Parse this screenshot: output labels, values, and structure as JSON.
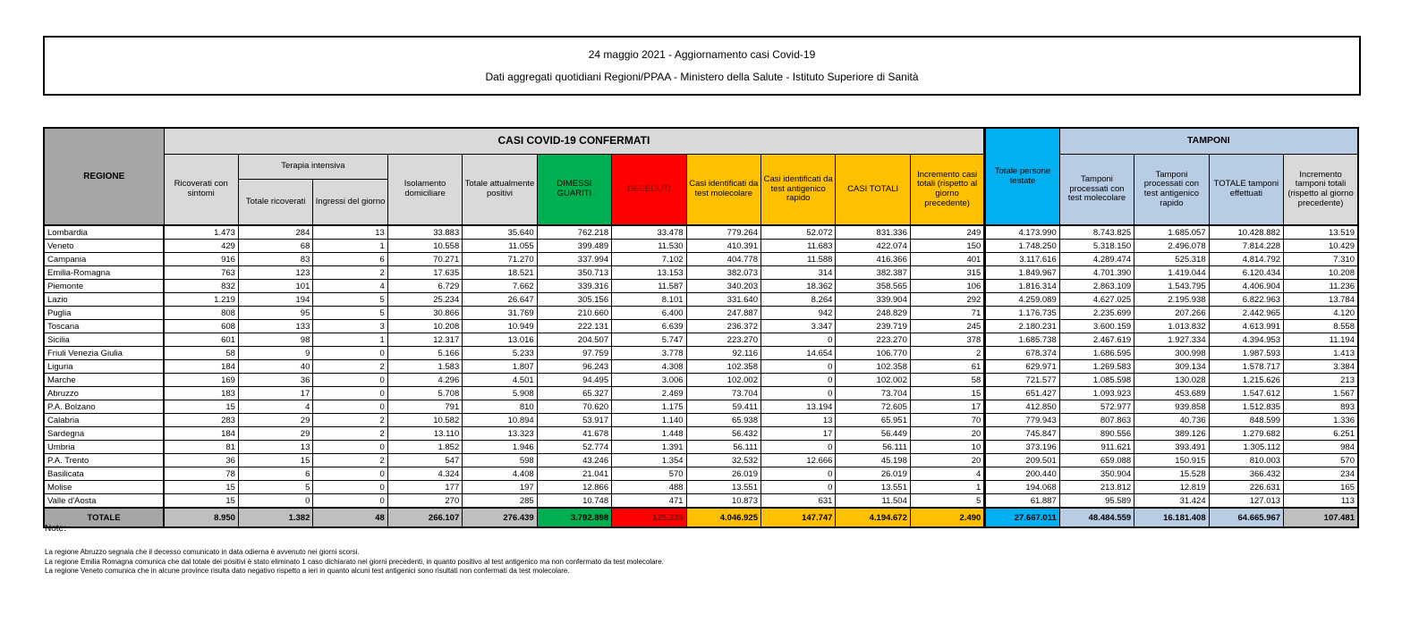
{
  "title": {
    "line1": "24 maggio 2021 - Aggiornamento casi Covid-19",
    "line2": "Dati aggregati quotidiani Regioni/PPAA - Ministero della Salute - Istituto Superiore di Sanità"
  },
  "colors": {
    "green": "#00B050",
    "red": "#FF0000",
    "red_text": "#7B0D00",
    "amber": "#FFC000",
    "cyan": "#00B0F0",
    "periwinkle": "#B8CCE4",
    "dark_gray": "#A6A6A6",
    "light_gray": "#D9D9D9",
    "total_gray": "#BFBFBF"
  },
  "table": {
    "group_headers": {
      "casi": "CASI COVID-19 CONFERMATI",
      "tamponi": "TAMPONI",
      "terapia": "Terapia intensiva"
    },
    "columns": {
      "regione": "REGIONE",
      "ricoverati": "Ricoverati con sintomi",
      "terapia_totale": "Totale ricoverati",
      "terapia_ingressi": "Ingressi del giorno",
      "isolamento": "Isolamento domiciliare",
      "attualmente_positivi": "Totale attualmente positivi",
      "dimessi": "DIMESSI GUARITI",
      "deceduti": "DECEDUTI",
      "casi_molecolare": "Casi identificati da test molecolare",
      "casi_antigenico": "Casi identificati da test antigenico rapido",
      "casi_totali": "CASI TOTALI",
      "incremento_casi": "Incremento casi totali (rispetto al giorno precedente)",
      "persone_testate": "Totale persone testate",
      "tamponi_molecolare": "Tamponi processati con test molecolare",
      "tamponi_antigenico": "Tamponi processati con test antigenico rapido",
      "totale_tamponi": "TOTALE tamponi effettuati",
      "incremento_tamponi": "Incremento tamponi totali (rispetto al giorno precedente)"
    },
    "rows": [
      {
        "regione": "Lombardia",
        "values": [
          "1.473",
          "284",
          "13",
          "33.883",
          "35.640",
          "762.218",
          "33.478",
          "779.264",
          "52.072",
          "831.336",
          "249",
          "4.173.990",
          "8.743.825",
          "1.685.057",
          "10.428.882",
          "13.519"
        ]
      },
      {
        "regione": "Veneto",
        "values": [
          "429",
          "68",
          "1",
          "10.558",
          "11.055",
          "399.489",
          "11.530",
          "410.391",
          "11.683",
          "422.074",
          "150",
          "1.748.250",
          "5.318.150",
          "2.496.078",
          "7.814.228",
          "10.429"
        ]
      },
      {
        "regione": "Campania",
        "values": [
          "916",
          "83",
          "6",
          "70.271",
          "71.270",
          "337.994",
          "7.102",
          "404.778",
          "11.588",
          "416.366",
          "401",
          "3.117.616",
          "4.289.474",
          "525.318",
          "4.814.792",
          "7.310"
        ]
      },
      {
        "regione": "Emilia-Romagna",
        "values": [
          "763",
          "123",
          "2",
          "17.635",
          "18.521",
          "350.713",
          "13.153",
          "382.073",
          "314",
          "382.387",
          "315",
          "1.849.967",
          "4.701.390",
          "1.419.044",
          "6.120.434",
          "10.208"
        ]
      },
      {
        "regione": "Piemonte",
        "values": [
          "832",
          "101",
          "4",
          "6.729",
          "7.662",
          "339.316",
          "11.587",
          "340.203",
          "18.362",
          "358.565",
          "106",
          "1.816.314",
          "2.863.109",
          "1.543.795",
          "4.406.904",
          "11.236"
        ]
      },
      {
        "regione": "Lazio",
        "values": [
          "1.219",
          "194",
          "5",
          "25.234",
          "26.647",
          "305.156",
          "8.101",
          "331.640",
          "8.264",
          "339.904",
          "292",
          "4.259.089",
          "4.627.025",
          "2.195.938",
          "6.822.963",
          "13.784"
        ]
      },
      {
        "regione": "Puglia",
        "values": [
          "808",
          "95",
          "5",
          "30.866",
          "31.769",
          "210.660",
          "6.400",
          "247.887",
          "942",
          "248.829",
          "71",
          "1.176.735",
          "2.235.699",
          "207.266",
          "2.442.965",
          "4.120"
        ]
      },
      {
        "regione": "Toscana",
        "values": [
          "608",
          "133",
          "3",
          "10.208",
          "10.949",
          "222.131",
          "6.639",
          "236.372",
          "3.347",
          "239.719",
          "245",
          "2.180.231",
          "3.600.159",
          "1.013.832",
          "4.613.991",
          "8.558"
        ]
      },
      {
        "regione": "Sicilia",
        "values": [
          "601",
          "98",
          "1",
          "12.317",
          "13.016",
          "204.507",
          "5.747",
          "223.270",
          "0",
          "223.270",
          "378",
          "1.685.738",
          "2.467.619",
          "1.927.334",
          "4.394.953",
          "11.194"
        ]
      },
      {
        "regione": "Friuli Venezia Giulia",
        "values": [
          "58",
          "9",
          "0",
          "5.166",
          "5.233",
          "97.759",
          "3.778",
          "92.116",
          "14.654",
          "106.770",
          "2",
          "678.374",
          "1.686.595",
          "300.998",
          "1.987.593",
          "1.413"
        ]
      },
      {
        "regione": "Liguria",
        "values": [
          "184",
          "40",
          "2",
          "1.583",
          "1.807",
          "96.243",
          "4.308",
          "102.358",
          "0",
          "102.358",
          "61",
          "629.971",
          "1.269.583",
          "309.134",
          "1.578.717",
          "3.384"
        ]
      },
      {
        "regione": "Marche",
        "values": [
          "169",
          "36",
          "0",
          "4.296",
          "4.501",
          "94.495",
          "3.006",
          "102.002",
          "0",
          "102.002",
          "58",
          "721.577",
          "1.085.598",
          "130.028",
          "1.215.626",
          "213"
        ]
      },
      {
        "regione": "Abruzzo",
        "values": [
          "183",
          "17",
          "0",
          "5.708",
          "5.908",
          "65.327",
          "2.469",
          "73.704",
          "0",
          "73.704",
          "15",
          "651.427",
          "1.093.923",
          "453.689",
          "1.547.612",
          "1.567"
        ]
      },
      {
        "regione": "P.A. Bolzano",
        "values": [
          "15",
          "4",
          "0",
          "791",
          "810",
          "70.620",
          "1.175",
          "59.411",
          "13.194",
          "72.605",
          "17",
          "412.850",
          "572.977",
          "939.858",
          "1.512.835",
          "893"
        ]
      },
      {
        "regione": "Calabria",
        "values": [
          "283",
          "29",
          "2",
          "10.582",
          "10.894",
          "53.917",
          "1.140",
          "65.938",
          "13",
          "65.951",
          "70",
          "779.943",
          "807.863",
          "40.736",
          "848.599",
          "1.336"
        ]
      },
      {
        "regione": "Sardegna",
        "values": [
          "184",
          "29",
          "2",
          "13.110",
          "13.323",
          "41.678",
          "1.448",
          "56.432",
          "17",
          "56.449",
          "20",
          "745.847",
          "890.556",
          "389.126",
          "1.279.682",
          "6.251"
        ]
      },
      {
        "regione": "Umbria",
        "values": [
          "81",
          "13",
          "0",
          "1.852",
          "1.946",
          "52.774",
          "1.391",
          "56.111",
          "0",
          "56.111",
          "10",
          "373.196",
          "911.621",
          "393.491",
          "1.305.112",
          "984"
        ]
      },
      {
        "regione": "P.A. Trento",
        "values": [
          "36",
          "15",
          "2",
          "547",
          "598",
          "43.246",
          "1.354",
          "32.532",
          "12.666",
          "45.198",
          "20",
          "209.501",
          "659.088",
          "150.915",
          "810.003",
          "570"
        ]
      },
      {
        "regione": "Basilicata",
        "values": [
          "78",
          "6",
          "0",
          "4.324",
          "4.408",
          "21.041",
          "570",
          "26.019",
          "0",
          "26.019",
          "4",
          "200.440",
          "350.904",
          "15.528",
          "366.432",
          "234"
        ]
      },
      {
        "regione": "Molise",
        "values": [
          "15",
          "5",
          "0",
          "177",
          "197",
          "12.866",
          "488",
          "13.551",
          "0",
          "13.551",
          "1",
          "194.068",
          "213.812",
          "12.819",
          "226.631",
          "165"
        ]
      },
      {
        "regione": "Valle d'Aosta",
        "values": [
          "15",
          "0",
          "0",
          "270",
          "285",
          "10.748",
          "471",
          "10.873",
          "631",
          "11.504",
          "5",
          "61.887",
          "95.589",
          "31.424",
          "127.013",
          "113"
        ]
      }
    ],
    "total_row": {
      "regione": "TOTALE",
      "values": [
        "8.950",
        "1.382",
        "48",
        "266.107",
        "276.439",
        "3.792.898",
        "125.335",
        "4.046.925",
        "147.747",
        "4.194.672",
        "2.490",
        "27.667.011",
        "48.484.559",
        "16.181.408",
        "64.665.967",
        "107.481"
      ]
    }
  },
  "notes": {
    "heading": "Note:",
    "lines": [
      "La regione Abruzzo segnala che il decesso comunicato in data odierna è avvenuto nei giorni scorsi.",
      "La regione Emilia Romagna comunica che dal totale dei positivi è stato eliminato 1 caso dichiarato nei giorni precedenti, in quanto positivo al test antigenico ma non confermato da test molecolare.",
      "La regione Veneto comunica che in alcune province risulta dato negativo rispetto a ieri in quanto alcuni test antigenici sono risultati non confermati da test molecolare."
    ]
  }
}
